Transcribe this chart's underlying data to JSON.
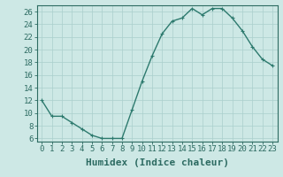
{
  "xlabel": "Humidex (Indice chaleur)",
  "x_values": [
    0,
    1,
    2,
    3,
    4,
    5,
    6,
    7,
    8,
    9,
    10,
    11,
    12,
    13,
    14,
    15,
    16,
    17,
    18,
    19,
    20,
    21,
    22,
    23
  ],
  "y_values": [
    12,
    9.5,
    9.5,
    8.5,
    7.5,
    6.5,
    6,
    6,
    6,
    10.5,
    15,
    19,
    22.5,
    24.5,
    25,
    26.5,
    25.5,
    26.5,
    26.5,
    25,
    23,
    20.5,
    18.5,
    17.5
  ],
  "line_color": "#2d7a6e",
  "marker": "+",
  "marker_size": 3.5,
  "background_color": "#cde8e5",
  "grid_color_major": "#aacfcc",
  "grid_color_minor": "#c2deda",
  "ylim": [
    5.5,
    27
  ],
  "yticks": [
    6,
    8,
    10,
    12,
    14,
    16,
    18,
    20,
    22,
    24,
    26
  ],
  "xlim": [
    -0.5,
    23.5
  ],
  "tick_fontsize": 6.5,
  "xlabel_fontsize": 8,
  "axis_color": "#2d6b62",
  "linewidth": 1.0,
  "marker_linewidth": 0.8
}
